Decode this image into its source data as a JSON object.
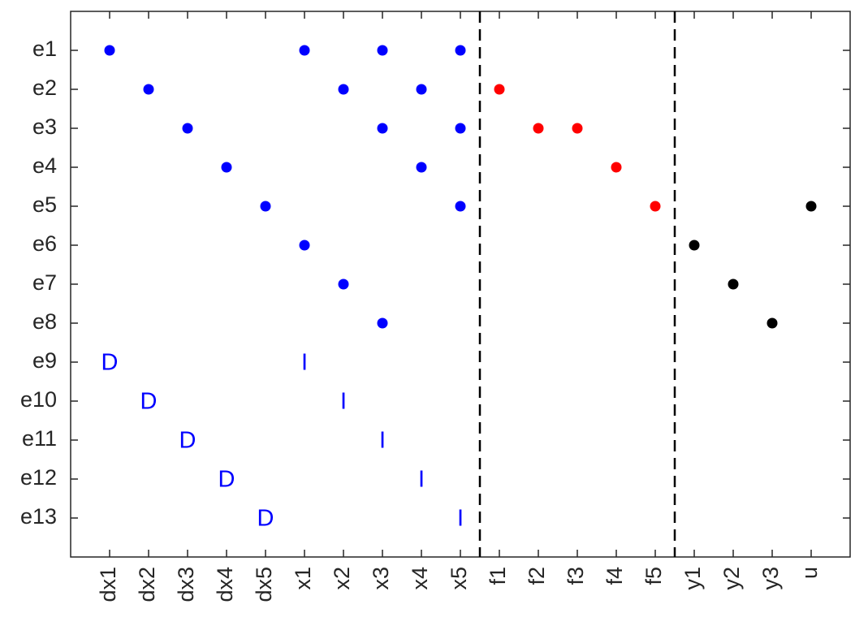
{
  "chart_data": {
    "type": "scatter",
    "x_categories": [
      "dx1",
      "dx2",
      "dx3",
      "dx4",
      "dx5",
      "x1",
      "x2",
      "x3",
      "x4",
      "x5",
      "f1",
      "f2",
      "f3",
      "f4",
      "f5",
      "y1",
      "y2",
      "y3",
      "u"
    ],
    "y_categories": [
      "e1",
      "e2",
      "e3",
      "e4",
      "e5",
      "e6",
      "e7",
      "e8",
      "e9",
      "e10",
      "e11",
      "e12",
      "e13"
    ],
    "xlim": [
      0,
      20
    ],
    "ylim": [
      0,
      14
    ],
    "y_reversed": true,
    "vlines": [
      10.5,
      15.5
    ],
    "series": [
      {
        "color": "#0000ff",
        "marker": "dot",
        "x": [
          "dx1",
          "x1",
          "x3",
          "x5",
          "dx2",
          "x2",
          "x4",
          "dx3",
          "x3",
          "x5",
          "dx4",
          "x4",
          "dx5",
          "x5",
          "x1",
          "x2",
          "x3"
        ],
        "y": [
          "e1",
          "e1",
          "e1",
          "e1",
          "e2",
          "e2",
          "e2",
          "e3",
          "e3",
          "e3",
          "e4",
          "e4",
          "e5",
          "e5",
          "e6",
          "e7",
          "e8"
        ]
      },
      {
        "color": "#ff0000",
        "marker": "dot",
        "x": [
          "f1",
          "f2",
          "f3",
          "f4",
          "f5"
        ],
        "y": [
          "e2",
          "e3",
          "e3",
          "e4",
          "e5"
        ]
      },
      {
        "color": "#000000",
        "marker": "dot",
        "x": [
          "u",
          "y1",
          "y2",
          "y3"
        ],
        "y": [
          "e5",
          "e6",
          "e7",
          "e8"
        ]
      },
      {
        "color": "#0000ff",
        "marker": "text",
        "label": "D",
        "x": [
          "dx1",
          "dx2",
          "dx3",
          "dx4",
          "dx5"
        ],
        "y": [
          "e9",
          "e10",
          "e11",
          "e12",
          "e13"
        ]
      },
      {
        "color": "#0000ff",
        "marker": "text",
        "label": "I",
        "x": [
          "x1",
          "x2",
          "x3",
          "x4",
          "x5"
        ],
        "y": [
          "e9",
          "e10",
          "e11",
          "e12",
          "e13"
        ]
      }
    ]
  }
}
